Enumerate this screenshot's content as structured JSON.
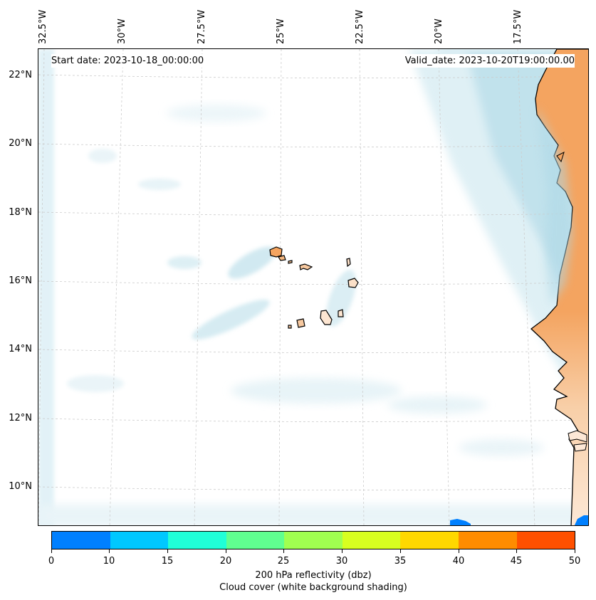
{
  "header": {
    "start_date": "Start date: 2023-10-18_00:00:00",
    "valid_date": "Valid_date: 2023-10-20T19:00:00.00"
  },
  "axes": {
    "longitude_labels": [
      "32.5°W",
      "30°W",
      "27.5°W",
      "25°W",
      "22.5°W",
      "20°W",
      "17.5°W"
    ],
    "latitude_labels": [
      "22°N",
      "20°N",
      "18°N",
      "16°N",
      "14°N",
      "12°N",
      "10°N"
    ]
  },
  "colorbar": {
    "ticks": [
      "0",
      "10",
      "15",
      "20",
      "25",
      "30",
      "35",
      "40",
      "45",
      "50"
    ],
    "colors": [
      "#0080ff",
      "#00c8ff",
      "#20ffd8",
      "#60ff90",
      "#a0ff50",
      "#d8ff20",
      "#ffd800",
      "#ff8c00",
      "#ff5000"
    ],
    "label": "200 hPa reflectivity (dbz)",
    "sublabel": "Cloud cover (white background shading)"
  },
  "map": {
    "land_color": "#f4a460",
    "cloud_color": "#add8e6",
    "ocean_color": "#ffffff",
    "coastline_color": "#000000",
    "grid_color": "#c8c8c8"
  }
}
